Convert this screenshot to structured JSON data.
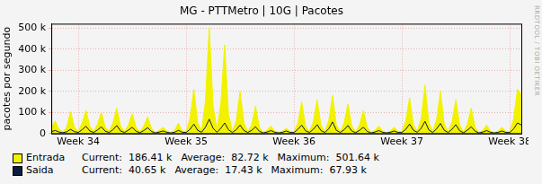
{
  "chart_data": {
    "type": "line",
    "title": "MG - PTTMetro | 10G | Pacotes",
    "y_label": "pacotes por segundo",
    "annotations": [
      "RRDTOOL / TOBI OETIKER"
    ],
    "grid": true,
    "ylim": [
      0,
      520000
    ],
    "yticks": [
      0,
      {
        "value": 100000,
        "label": "100 k"
      },
      {
        "value": 200000,
        "label": "200 k"
      },
      {
        "value": 300000,
        "label": "300 k"
      },
      {
        "value": 400000,
        "label": "400 k"
      },
      {
        "value": 500000,
        "label": "500 k"
      }
    ],
    "categories": [
      null,
      null,
      null,
      null,
      null,
      null,
      null,
      "Week 34",
      null,
      null,
      null,
      null,
      null,
      null,
      null,
      null,
      null,
      null,
      null,
      null,
      null,
      null,
      null,
      null,
      null,
      null,
      null,
      null,
      null,
      null,
      null,
      null,
      null,
      null,
      null,
      "Week 35",
      null,
      null,
      null,
      null,
      null,
      null,
      null,
      null,
      null,
      null,
      null,
      null,
      null,
      null,
      null,
      null,
      null,
      null,
      null,
      null,
      null,
      null,
      null,
      null,
      null,
      null,
      null,
      "Week 36",
      null,
      null,
      null,
      null,
      null,
      null,
      null,
      null,
      null,
      null,
      null,
      null,
      null,
      null,
      null,
      null,
      null,
      null,
      null,
      null,
      null,
      null,
      null,
      null,
      null,
      null,
      null,
      "Week 37",
      null,
      null,
      null,
      null,
      null,
      null,
      null,
      null,
      null,
      null,
      null,
      null,
      null,
      null,
      null,
      null,
      null,
      null,
      null,
      null,
      null,
      null,
      null,
      null,
      null,
      null,
      null,
      "Week 38",
      null,
      null,
      null
    ],
    "series": [
      {
        "name": "Entrada",
        "type": "area",
        "color": "#f2f200",
        "stats": [
          {
            "label": "Current:",
            "value": 186410,
            "value_label": "186.41 k"
          },
          {
            "label": "Average:",
            "value": 82720,
            "value_label": "82.72 k"
          },
          {
            "label": "Maximum:",
            "value": 501640,
            "value_label": "501.64 k"
          }
        ],
        "values": [
          25000,
          60000,
          20000,
          8000,
          30000,
          105000,
          30000,
          10000,
          50000,
          110000,
          35000,
          10000,
          45000,
          100000,
          30000,
          12000,
          50000,
          120000,
          35000,
          10000,
          40000,
          95000,
          30000,
          8000,
          35000,
          80000,
          25000,
          6000,
          15000,
          30000,
          12000,
          5000,
          15000,
          50000,
          12000,
          10000,
          70000,
          210000,
          50000,
          15000,
          150000,
          501640,
          130000,
          20000,
          140000,
          420000,
          90000,
          12000,
          60000,
          200000,
          50000,
          10000,
          40000,
          130000,
          30000,
          6000,
          15000,
          35000,
          12000,
          5000,
          12000,
          25000,
          10000,
          8000,
          50000,
          150000,
          35000,
          10000,
          55000,
          160000,
          40000,
          10000,
          60000,
          180000,
          40000,
          10000,
          50000,
          140000,
          35000,
          8000,
          40000,
          110000,
          30000,
          6000,
          15000,
          35000,
          12000,
          5000,
          12000,
          30000,
          10000,
          10000,
          60000,
          170000,
          40000,
          12000,
          70000,
          230000,
          50000,
          12000,
          65000,
          200000,
          45000,
          10000,
          55000,
          160000,
          40000,
          8000,
          45000,
          120000,
          30000,
          6000,
          15000,
          40000,
          12000,
          5000,
          12000,
          30000,
          10000,
          10000,
          70000,
          210000,
          186410
        ]
      },
      {
        "name": "Saida",
        "type": "line",
        "color": "#0a1e3c",
        "stats": [
          {
            "label": "Current:",
            "value": 40650,
            "value_label": "40.65 k"
          },
          {
            "label": "Average:",
            "value": 17430,
            "value_label": "17.43 k"
          },
          {
            "label": "Maximum:",
            "value": 67930,
            "value_label": "67.93 k"
          }
        ],
        "values": [
          8000,
          15000,
          7000,
          4000,
          8000,
          20000,
          9000,
          5000,
          18000,
          35000,
          12000,
          5000,
          17000,
          32000,
          11000,
          5000,
          18000,
          38000,
          12000,
          5000,
          16000,
          30000,
          11000,
          4000,
          14000,
          28000,
          10000,
          3000,
          7000,
          12000,
          6000,
          3000,
          6000,
          15000,
          6000,
          5000,
          20000,
          45000,
          15000,
          6000,
          30000,
          67930,
          25000,
          6000,
          25000,
          50000,
          18000,
          5000,
          18000,
          40000,
          14000,
          5000,
          15000,
          32000,
          11000,
          3000,
          7000,
          14000,
          6000,
          3000,
          6000,
          12000,
          5000,
          5000,
          20000,
          40000,
          13000,
          5000,
          20000,
          42000,
          14000,
          5000,
          22000,
          55000,
          15000,
          5000,
          18000,
          38000,
          12000,
          4000,
          15000,
          30000,
          10000,
          3000,
          7000,
          14000,
          6000,
          3000,
          6000,
          12000,
          5000,
          5000,
          20000,
          45000,
          15000,
          6000,
          25000,
          58000,
          17000,
          5000,
          22000,
          48000,
          15000,
          5000,
          20000,
          42000,
          13000,
          4000,
          16000,
          32000,
          11000,
          3000,
          7000,
          14000,
          6000,
          3000,
          6000,
          12000,
          5000,
          5000,
          22000,
          50000,
          40650
        ]
      }
    ]
  }
}
